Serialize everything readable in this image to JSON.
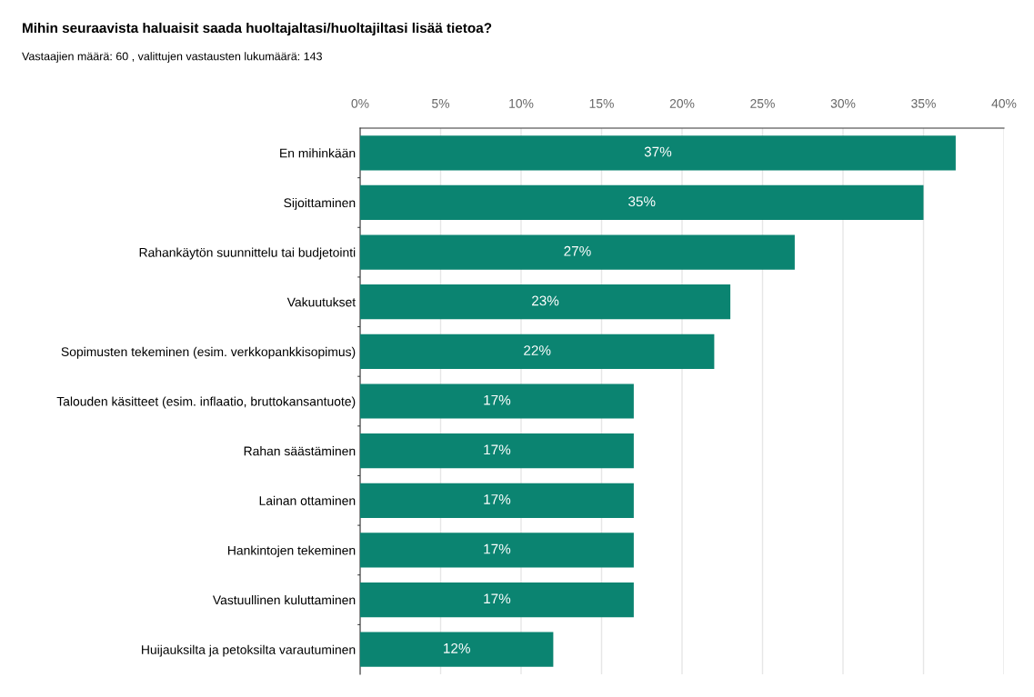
{
  "chart_data": {
    "type": "bar",
    "orientation": "horizontal",
    "title": "Mihin seuraavista haluaisit saada huoltajaltasi/huoltajiltasi lisää tietoa?",
    "subtitle": "Vastaajien määrä: 60 , valittujen vastausten lukumäärä: 143",
    "categories": [
      "En mihinkään",
      "Sijoittaminen",
      "Rahankäytön suunnittelu tai budjetointi",
      "Vakuutukset",
      "Sopimusten tekeminen (esim. verkkopankkisopimus)",
      "Talouden käsitteet (esim. inflaatio, bruttokansantuote)",
      "Rahan säästäminen",
      "Lainan ottaminen",
      "Hankintojen tekeminen",
      "Vastuullinen kuluttaminen",
      "Huijauksilta ja petoksilta varautuminen"
    ],
    "values": [
      37,
      35,
      27,
      23,
      22,
      17,
      17,
      17,
      17,
      17,
      12
    ],
    "value_labels": [
      "37%",
      "35%",
      "27%",
      "23%",
      "22%",
      "17%",
      "17%",
      "17%",
      "17%",
      "17%",
      "12%"
    ],
    "color": "#0b8471",
    "xlim": [
      0,
      40
    ],
    "xticks": [
      {
        "value": 0,
        "label": "0%"
      },
      {
        "value": 5,
        "label": "5%"
      },
      {
        "value": 10,
        "label": "10%"
      },
      {
        "value": 15,
        "label": "15%"
      },
      {
        "value": 20,
        "label": "20%"
      },
      {
        "value": 25,
        "label": "25%"
      },
      {
        "value": 30,
        "label": "30%"
      },
      {
        "value": 35,
        "label": "35%"
      },
      {
        "value": 40,
        "label": "40%"
      }
    ],
    "grid": "x",
    "legend": false
  }
}
